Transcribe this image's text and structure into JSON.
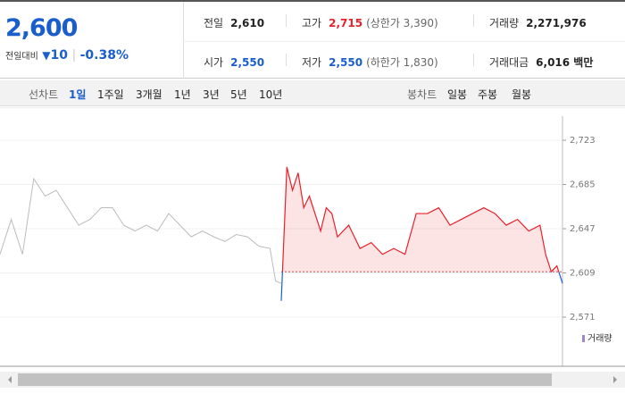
{
  "quote": {
    "price": "2,600",
    "change_label": "전일대비",
    "change": "10",
    "change_rate": "-0.38%",
    "rows": [
      [
        {
          "label": "전일",
          "value": "2,610"
        },
        {
          "label": "고가",
          "value": "2,715",
          "note": "(상한가 3,390)"
        },
        {
          "label": "거래량",
          "value": "2,271,976"
        }
      ],
      [
        {
          "label": "시가",
          "value": "2,550"
        },
        {
          "label": "저가",
          "value": "2,550",
          "note": "(하한가 1,830)"
        },
        {
          "label": "거래대금",
          "value": "6,016 백만"
        }
      ]
    ]
  },
  "toolbar": {
    "line_label": "선차트",
    "line_tabs": [
      "1일",
      "1주일",
      "3개월",
      "1년",
      "3년",
      "5년",
      "10년"
    ],
    "candle_label": "봉차트",
    "candle_tabs": [
      "일봉",
      "주봉",
      "월봉"
    ]
  },
  "chart_data": {
    "type": "line",
    "xlim": [
      0,
      100
    ],
    "ylim": [
      2571,
      2723
    ],
    "yticks": [
      {
        "value": 2723,
        "label": "2,723"
      },
      {
        "value": 2685,
        "label": "2,685"
      },
      {
        "value": 2647,
        "label": "2,647"
      },
      {
        "value": 2609,
        "label": "2,609"
      },
      {
        "value": 2571,
        "label": "2,571"
      }
    ],
    "baseline": 2610,
    "volume_label": "거래량",
    "series": [
      {
        "color": "#bbbbbb",
        "x": [
          0,
          2,
          4,
          6,
          8,
          10,
          12,
          14,
          16,
          18,
          20,
          22,
          24,
          26,
          28,
          30,
          32,
          34,
          36,
          38,
          40,
          42,
          44,
          46,
          48,
          49,
          50
        ],
        "values": [
          2625,
          2655,
          2625,
          2690,
          2675,
          2680,
          2665,
          2650,
          2655,
          2665,
          2665,
          2650,
          2645,
          2650,
          2645,
          2660,
          2650,
          2640,
          2645,
          2640,
          2636,
          2642,
          2640,
          2632,
          2630,
          2602,
          2600
        ]
      },
      {
        "color": "#e8202a",
        "x": [
          50,
          51,
          52,
          53,
          54,
          55,
          56,
          57,
          58,
          59,
          60,
          62,
          64,
          66,
          68,
          70,
          72,
          74,
          76,
          78,
          80,
          82,
          84,
          86,
          88,
          90,
          92,
          94,
          96,
          97,
          98,
          99,
          100
        ],
        "values": [
          2585,
          2700,
          2680,
          2695,
          2665,
          2675,
          2660,
          2645,
          2665,
          2660,
          2640,
          2650,
          2630,
          2635,
          2625,
          2630,
          2625,
          2660,
          2660,
          2665,
          2650,
          2655,
          2660,
          2665,
          2660,
          2650,
          2655,
          2645,
          2650,
          2625,
          2610,
          2615,
          2600
        ]
      }
    ]
  }
}
